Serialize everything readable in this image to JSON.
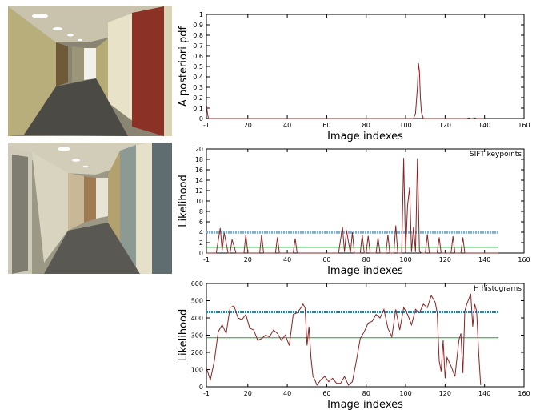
{
  "colors": {
    "data_line": "#8b2323",
    "mean_line": "#1e9e3a",
    "threshold_line": "#2a7fa8",
    "axes": "#000000"
  },
  "photos": [
    {
      "name": "corridor-photo-1",
      "description_icon": "corridor-photo"
    },
    {
      "name": "corridor-photo-2",
      "description_icon": "corridor-photo"
    }
  ],
  "chart_data": [
    {
      "type": "line",
      "title": "",
      "xlabel": "Image indexes",
      "ylabel": "A posteriori pdf",
      "xlim": [
        -1,
        160
      ],
      "ylim": [
        0,
        1
      ],
      "xticks": [
        -1,
        20,
        40,
        60,
        80,
        100,
        120,
        140,
        160
      ],
      "yticks": [
        0,
        0.1,
        0.2,
        0.3,
        0.4,
        0.5,
        0.6,
        0.7,
        0.8,
        0.9,
        1
      ],
      "ytick_labels": [
        "0",
        "0.1",
        "0.2",
        "0.3",
        "0.4",
        "0.5",
        "0.6",
        "0.7",
        "0.8",
        "0.9",
        "1"
      ],
      "series": [
        {
          "x": [
            -1,
            -0.5,
            0,
            1,
            5,
            10,
            20,
            40,
            60,
            80,
            100,
            104,
            105,
            106,
            106.5,
            107,
            107.5,
            108,
            109,
            110,
            120,
            131,
            132,
            133,
            134,
            135,
            136,
            137,
            140
          ],
          "y": [
            0.14,
            0.06,
            0,
            0,
            0,
            0,
            0,
            0,
            0,
            0,
            0,
            0,
            0.05,
            0.3,
            0.53,
            0.45,
            0.2,
            0.06,
            0,
            0,
            0,
            0,
            0.005,
            0,
            0,
            0.005,
            0,
            0,
            0
          ]
        }
      ]
    },
    {
      "type": "line",
      "title": "SIFT keypoints",
      "xlabel": "Image indexes",
      "ylabel": "Likelihood",
      "xlim": [
        -1,
        160
      ],
      "ylim": [
        0,
        20
      ],
      "xticks": [
        -1,
        20,
        40,
        60,
        80,
        100,
        120,
        140,
        160
      ],
      "yticks": [
        0,
        2,
        4,
        6,
        8,
        10,
        12,
        14,
        16,
        18,
        20
      ],
      "ytick_labels": [
        "0",
        "2",
        "4",
        "6",
        "8",
        "10",
        "12",
        "14",
        "16",
        "18",
        "20"
      ],
      "mean_line": 1.1,
      "threshold_line": 4.0,
      "line_end_x": 147,
      "series": [
        {
          "x": [
            -1,
            4,
            6,
            7,
            8,
            10,
            11,
            12,
            14,
            18,
            19,
            20,
            22,
            26,
            27,
            28,
            30,
            34,
            35,
            36,
            38,
            43,
            44,
            45,
            47,
            66,
            68,
            69,
            70,
            72,
            73,
            74,
            75,
            77,
            78,
            79,
            80,
            81,
            82,
            85,
            86,
            87,
            88,
            90,
            91,
            92,
            94,
            95,
            96,
            98,
            99,
            100,
            101,
            102,
            103,
            104,
            105,
            106,
            107,
            108,
            110,
            111,
            112,
            114,
            116,
            117,
            118,
            120,
            123,
            124,
            125,
            128,
            129,
            130,
            132,
            147
          ],
          "y": [
            0,
            0,
            4.8,
            0.5,
            3.9,
            0,
            0,
            2.6,
            0,
            0,
            3.5,
            0,
            0,
            0,
            3.5,
            0,
            0,
            0,
            3.0,
            0,
            0,
            0,
            2.8,
            0,
            0,
            0,
            5.0,
            0.2,
            4.4,
            0,
            4.0,
            0,
            0,
            0,
            3.5,
            0,
            0,
            3.3,
            0,
            0,
            3.0,
            0,
            0,
            0,
            3.5,
            0,
            0,
            5.3,
            0,
            0,
            18.3,
            0.3,
            9.2,
            12.6,
            0.2,
            5.0,
            0.2,
            18.2,
            0.3,
            0,
            0,
            3.6,
            0,
            0,
            0,
            3.0,
            0,
            0,
            0,
            3.2,
            0,
            0,
            3.0,
            0,
            0,
            0
          ]
        }
      ]
    },
    {
      "type": "line",
      "title": "H histograms",
      "xlabel": "Image indexes",
      "ylabel": "Likelihood",
      "xlim": [
        -1,
        160
      ],
      "ylim": [
        0,
        600
      ],
      "xticks": [
        -1,
        20,
        40,
        60,
        80,
        100,
        120,
        140,
        160
      ],
      "yticks": [
        0,
        100,
        200,
        300,
        400,
        500,
        600
      ],
      "ytick_labels": [
        "0",
        "100",
        "200",
        "300",
        "400",
        "500",
        "600"
      ],
      "mean_line": 285,
      "threshold_line": 435,
      "line_end_x": 147,
      "series": [
        {
          "x": [
            -1,
            1,
            3,
            5,
            7,
            9,
            11,
            13,
            15,
            17,
            19,
            21,
            23,
            25,
            27,
            29,
            31,
            33,
            35,
            37,
            39,
            41,
            43,
            45,
            47,
            48,
            49,
            50,
            51,
            52,
            53,
            54,
            55,
            57,
            59,
            61,
            63,
            65,
            67,
            69,
            71,
            73,
            75,
            77,
            79,
            81,
            83,
            85,
            87,
            89,
            91,
            93,
            95,
            97,
            99,
            101,
            103,
            105,
            107,
            109,
            111,
            113,
            115,
            116,
            117,
            118,
            119,
            120,
            121,
            123,
            125,
            127,
            128,
            129,
            130,
            131,
            132,
            133,
            134,
            135,
            136,
            137,
            138
          ],
          "y": [
            110,
            40,
            150,
            320,
            360,
            310,
            460,
            470,
            400,
            390,
            420,
            340,
            330,
            270,
            280,
            300,
            290,
            330,
            310,
            270,
            300,
            240,
            420,
            430,
            460,
            480,
            460,
            240,
            350,
            170,
            60,
            40,
            10,
            40,
            60,
            30,
            50,
            20,
            20,
            60,
            10,
            30,
            150,
            280,
            320,
            370,
            380,
            420,
            400,
            450,
            340,
            290,
            450,
            330,
            460,
            420,
            360,
            450,
            430,
            480,
            460,
            530,
            490,
            430,
            150,
            90,
            270,
            50,
            170,
            120,
            60,
            270,
            310,
            80,
            440,
            480,
            510,
            540,
            350,
            480,
            440,
            200,
            10
          ]
        }
      ]
    }
  ]
}
